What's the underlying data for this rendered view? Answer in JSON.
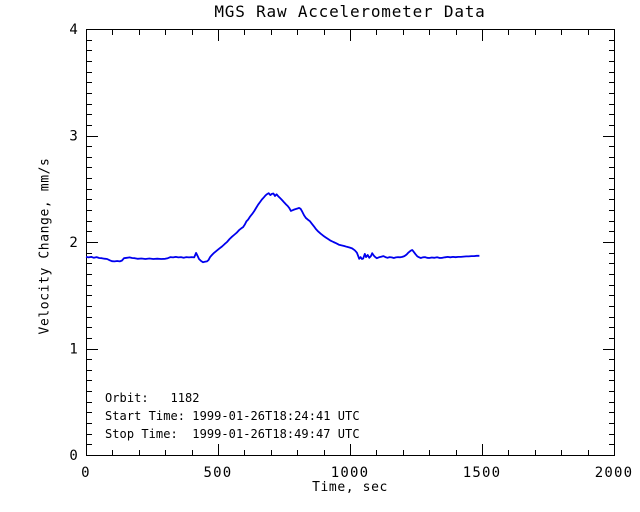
{
  "chart_data": {
    "type": "line",
    "title": "MGS Raw Accelerometer Data",
    "xlabel": "Time, sec",
    "ylabel": "Velocity Change, mm/s",
    "xlim": [
      0,
      2000
    ],
    "ylim": [
      0,
      4
    ],
    "x_major_ticks": [
      0,
      500,
      1000,
      1500,
      2000
    ],
    "x_tick_labels": [
      "0",
      "500",
      "1000",
      "1500",
      "2000"
    ],
    "x_minor_step": 100,
    "y_major_ticks": [
      0,
      1,
      2,
      3,
      4
    ],
    "y_tick_labels": [
      "0",
      "1",
      "2",
      "3",
      "4"
    ],
    "y_minor_step": 0.1,
    "grid": false,
    "legend": "none",
    "frame": "full-box-inward-ticks",
    "line_color": "#0000ee",
    "axis_color": "#000000",
    "background_color": "#ffffff",
    "annotations": [
      "Orbit:   1182",
      "Start Time: 1999-01-26T18:24:41 UTC",
      "Stop Time:  1999-01-26T18:49:47 UTC"
    ],
    "series": [
      {
        "name": "velocity change",
        "points": [
          [
            0,
            1.86
          ],
          [
            10,
            1.855
          ],
          [
            20,
            1.86
          ],
          [
            30,
            1.852
          ],
          [
            40,
            1.858
          ],
          [
            50,
            1.85
          ],
          [
            60,
            1.848
          ],
          [
            70,
            1.843
          ],
          [
            80,
            1.84
          ],
          [
            90,
            1.828
          ],
          [
            98,
            1.82
          ],
          [
            108,
            1.818
          ],
          [
            118,
            1.822
          ],
          [
            128,
            1.818
          ],
          [
            136,
            1.825
          ],
          [
            144,
            1.848
          ],
          [
            155,
            1.852
          ],
          [
            165,
            1.855
          ],
          [
            175,
            1.85
          ],
          [
            185,
            1.848
          ],
          [
            195,
            1.842
          ],
          [
            210,
            1.845
          ],
          [
            225,
            1.84
          ],
          [
            240,
            1.845
          ],
          [
            255,
            1.84
          ],
          [
            270,
            1.843
          ],
          [
            285,
            1.84
          ],
          [
            300,
            1.842
          ],
          [
            310,
            1.848
          ],
          [
            320,
            1.858
          ],
          [
            330,
            1.855
          ],
          [
            340,
            1.86
          ],
          [
            350,
            1.855
          ],
          [
            360,
            1.858
          ],
          [
            370,
            1.853
          ],
          [
            380,
            1.858
          ],
          [
            390,
            1.855
          ],
          [
            400,
            1.858
          ],
          [
            410,
            1.855
          ],
          [
            417,
            1.898
          ],
          [
            423,
            1.868
          ],
          [
            428,
            1.84
          ],
          [
            436,
            1.822
          ],
          [
            443,
            1.81
          ],
          [
            450,
            1.814
          ],
          [
            458,
            1.818
          ],
          [
            464,
            1.83
          ],
          [
            470,
            1.858
          ],
          [
            477,
            1.878
          ],
          [
            485,
            1.898
          ],
          [
            495,
            1.918
          ],
          [
            505,
            1.938
          ],
          [
            515,
            1.958
          ],
          [
            525,
            1.98
          ],
          [
            534,
            2.0
          ],
          [
            544,
            2.028
          ],
          [
            553,
            2.05
          ],
          [
            563,
            2.07
          ],
          [
            572,
            2.09
          ],
          [
            580,
            2.112
          ],
          [
            588,
            2.128
          ],
          [
            595,
            2.14
          ],
          [
            602,
            2.165
          ],
          [
            608,
            2.195
          ],
          [
            614,
            2.21
          ],
          [
            622,
            2.24
          ],
          [
            629,
            2.262
          ],
          [
            637,
            2.29
          ],
          [
            644,
            2.318
          ],
          [
            652,
            2.35
          ],
          [
            659,
            2.375
          ],
          [
            666,
            2.398
          ],
          [
            674,
            2.42
          ],
          [
            680,
            2.438
          ],
          [
            686,
            2.45
          ],
          [
            692,
            2.458
          ],
          [
            698,
            2.44
          ],
          [
            704,
            2.452
          ],
          [
            710,
            2.455
          ],
          [
            716,
            2.432
          ],
          [
            722,
            2.448
          ],
          [
            728,
            2.43
          ],
          [
            734,
            2.415
          ],
          [
            740,
            2.4
          ],
          [
            746,
            2.385
          ],
          [
            752,
            2.368
          ],
          [
            758,
            2.352
          ],
          [
            764,
            2.338
          ],
          [
            770,
            2.318
          ],
          [
            776,
            2.292
          ],
          [
            782,
            2.298
          ],
          [
            789,
            2.305
          ],
          [
            795,
            2.31
          ],
          [
            801,
            2.315
          ],
          [
            807,
            2.32
          ],
          [
            813,
            2.312
          ],
          [
            819,
            2.285
          ],
          [
            826,
            2.25
          ],
          [
            833,
            2.225
          ],
          [
            840,
            2.21
          ],
          [
            848,
            2.195
          ],
          [
            856,
            2.17
          ],
          [
            864,
            2.145
          ],
          [
            872,
            2.118
          ],
          [
            880,
            2.098
          ],
          [
            889,
            2.078
          ],
          [
            898,
            2.06
          ],
          [
            907,
            2.045
          ],
          [
            917,
            2.028
          ],
          [
            927,
            2.012
          ],
          [
            937,
            2.0
          ],
          [
            948,
            1.988
          ],
          [
            958,
            1.975
          ],
          [
            968,
            1.968
          ],
          [
            978,
            1.962
          ],
          [
            988,
            1.955
          ],
          [
            998,
            1.948
          ],
          [
            1008,
            1.94
          ],
          [
            1018,
            1.922
          ],
          [
            1026,
            1.9
          ],
          [
            1031,
            1.868
          ],
          [
            1035,
            1.842
          ],
          [
            1040,
            1.858
          ],
          [
            1045,
            1.84
          ],
          [
            1050,
            1.845
          ],
          [
            1056,
            1.888
          ],
          [
            1061,
            1.858
          ],
          [
            1067,
            1.878
          ],
          [
            1073,
            1.852
          ],
          [
            1079,
            1.868
          ],
          [
            1084,
            1.895
          ],
          [
            1090,
            1.872
          ],
          [
            1096,
            1.858
          ],
          [
            1102,
            1.848
          ],
          [
            1110,
            1.856
          ],
          [
            1118,
            1.862
          ],
          [
            1126,
            1.868
          ],
          [
            1134,
            1.858
          ],
          [
            1142,
            1.852
          ],
          [
            1150,
            1.858
          ],
          [
            1158,
            1.855
          ],
          [
            1166,
            1.85
          ],
          [
            1174,
            1.855
          ],
          [
            1182,
            1.858
          ],
          [
            1190,
            1.856
          ],
          [
            1198,
            1.86
          ],
          [
            1206,
            1.868
          ],
          [
            1214,
            1.882
          ],
          [
            1222,
            1.902
          ],
          [
            1230,
            1.918
          ],
          [
            1236,
            1.925
          ],
          [
            1242,
            1.905
          ],
          [
            1248,
            1.885
          ],
          [
            1254,
            1.868
          ],
          [
            1260,
            1.858
          ],
          [
            1268,
            1.85
          ],
          [
            1276,
            1.856
          ],
          [
            1284,
            1.858
          ],
          [
            1292,
            1.852
          ],
          [
            1300,
            1.85
          ],
          [
            1310,
            1.854
          ],
          [
            1320,
            1.852
          ],
          [
            1330,
            1.856
          ],
          [
            1340,
            1.85
          ],
          [
            1350,
            1.852
          ],
          [
            1360,
            1.856
          ],
          [
            1370,
            1.86
          ],
          [
            1380,
            1.856
          ],
          [
            1390,
            1.86
          ],
          [
            1400,
            1.857
          ],
          [
            1410,
            1.86
          ],
          [
            1420,
            1.86
          ],
          [
            1430,
            1.863
          ],
          [
            1440,
            1.865
          ],
          [
            1450,
            1.865
          ],
          [
            1460,
            1.868
          ],
          [
            1470,
            1.868
          ],
          [
            1480,
            1.87
          ],
          [
            1490,
            1.87
          ]
        ]
      }
    ]
  }
}
